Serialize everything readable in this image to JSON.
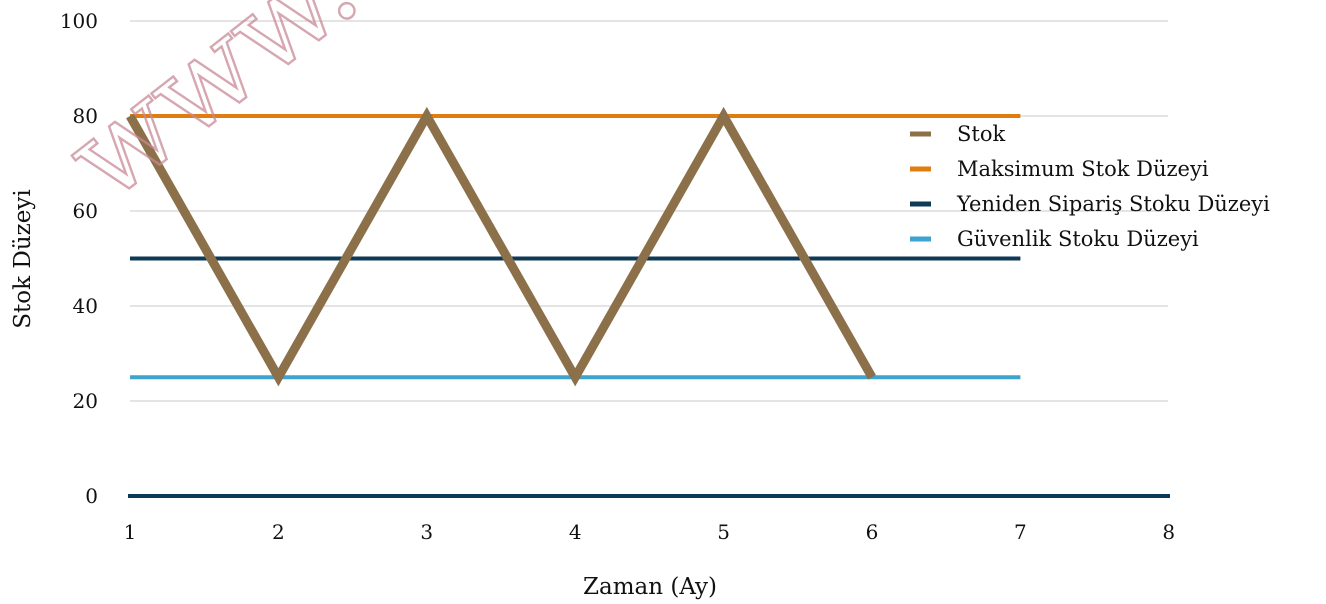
{
  "chart_data": {
    "type": "line",
    "title": "",
    "xlabel": "Zaman (Ay)",
    "ylabel": "Stok Düzeyi",
    "xlim": [
      1,
      8
    ],
    "ylim": [
      0,
      100
    ],
    "x_ticks": [
      1,
      2,
      3,
      4,
      5,
      6,
      7,
      8
    ],
    "y_ticks": [
      0,
      20,
      40,
      60,
      80,
      100
    ],
    "grid": "horizontal",
    "legend_position": "right",
    "series": [
      {
        "name": "Stok",
        "color": "#8b7049",
        "x": [
          1,
          2,
          3,
          4,
          5,
          6
        ],
        "y": [
          80,
          25,
          80,
          25,
          80,
          25
        ]
      },
      {
        "name": "Maksimum Stok Düzeyi",
        "color": "#e07d10",
        "x": [
          1,
          7
        ],
        "y": [
          80,
          80
        ]
      },
      {
        "name": "Yeniden Sipariş Stoku Düzeyi",
        "color": "#0e3a57",
        "x": [
          1,
          7
        ],
        "y": [
          50,
          50
        ]
      },
      {
        "name": "Güvenlik Stoku Düzeyi",
        "color": "#3ea4cf",
        "x": [
          1,
          7
        ],
        "y": [
          25,
          25
        ]
      }
    ],
    "baseline_color": "#0e3a57",
    "grid_color": "#c9c9c9",
    "watermark": "www.sa"
  }
}
